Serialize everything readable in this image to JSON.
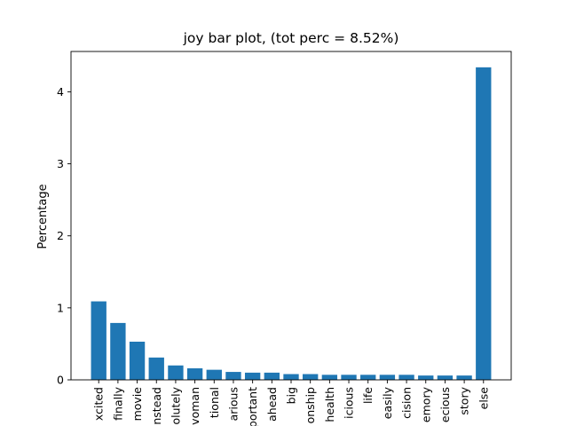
{
  "chart_data": {
    "type": "bar",
    "title": "joy bar plot, (tot perc = 8.52%)",
    "xlabel": "",
    "ylabel": "Percentage",
    "categories": [
      "xcited",
      "finally",
      "movie",
      "nstead",
      "olutely",
      "voman",
      "tional",
      "arious",
      "portant",
      "ahead",
      "big",
      "onship",
      "health",
      "icious",
      "life",
      "easily",
      "cision",
      "emory",
      "ecious",
      "story",
      "else"
    ],
    "values": [
      1.09,
      0.79,
      0.53,
      0.31,
      0.2,
      0.16,
      0.14,
      0.11,
      0.1,
      0.1,
      0.08,
      0.08,
      0.07,
      0.07,
      0.07,
      0.07,
      0.07,
      0.06,
      0.06,
      0.06,
      4.34
    ],
    "yticks": [
      0,
      1,
      2,
      3,
      4
    ],
    "ylim": [
      0,
      4.56
    ],
    "grid": false,
    "bar_color": "#1f77b4"
  }
}
